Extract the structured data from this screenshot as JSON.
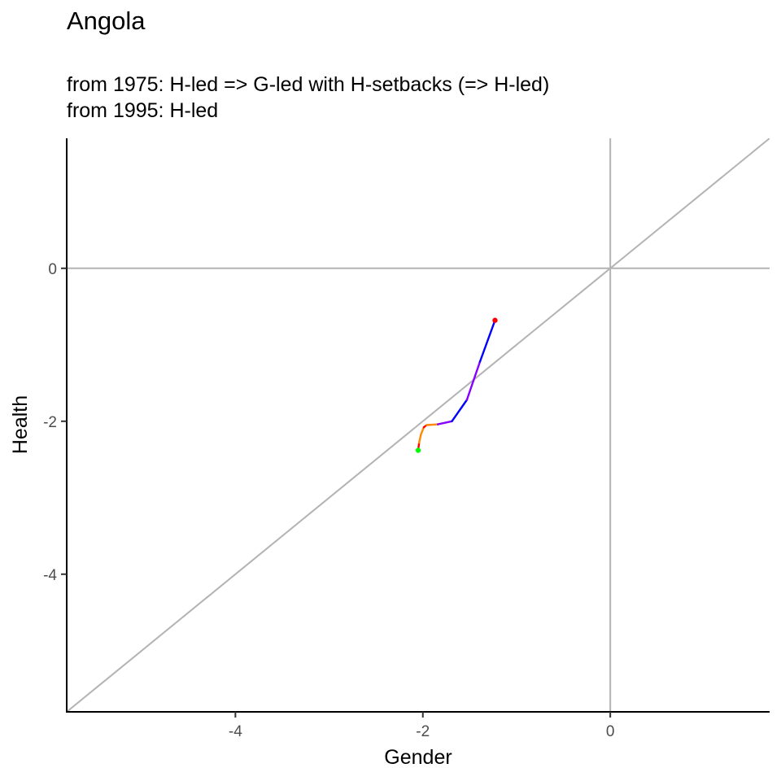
{
  "chart_data": {
    "type": "line",
    "title": "Angola",
    "subtitle_lines": [
      "from 1975:  H-led => G-led with H-setbacks (=> H-led)",
      "from 1995:  H-led"
    ],
    "xlabel": "Gender",
    "ylabel": "Health",
    "xlim": [
      -5.8,
      1.7
    ],
    "ylim": [
      -5.8,
      1.7
    ],
    "x_ticks": [
      -4,
      -2,
      0
    ],
    "y_ticks": [
      0,
      -2,
      -4
    ],
    "grid": false,
    "reference_lines": [
      "x = 0",
      "y = 0",
      "y = x"
    ],
    "reference_color": "#b3b3b3",
    "start_point": {
      "x": -2.05,
      "y": -2.38,
      "color": "#00ff00"
    },
    "end_point": {
      "x": -1.23,
      "y": -0.68,
      "color": "#ff0000"
    },
    "path_segments": [
      {
        "color": "#ff0000",
        "points": [
          [
            -2.05,
            -2.38
          ],
          [
            -2.04,
            -2.28
          ]
        ]
      },
      {
        "color": "#ff8800",
        "points": [
          [
            -2.04,
            -2.28
          ],
          [
            -2.02,
            -2.17
          ],
          [
            -1.99,
            -2.08
          ]
        ]
      },
      {
        "color": "#ff0000",
        "points": [
          [
            -1.99,
            -2.08
          ],
          [
            -1.96,
            -2.05
          ]
        ]
      },
      {
        "color": "#ff8800",
        "points": [
          [
            -1.96,
            -2.05
          ],
          [
            -1.84,
            -2.04
          ]
        ]
      },
      {
        "color": "#8800ff",
        "points": [
          [
            -1.84,
            -2.04
          ],
          [
            -1.69,
            -2.0
          ]
        ]
      },
      {
        "color": "#0000ff",
        "points": [
          [
            -1.69,
            -2.0
          ],
          [
            -1.53,
            -1.72
          ]
        ]
      },
      {
        "color": "#8800ff",
        "points": [
          [
            -1.53,
            -1.72
          ],
          [
            -1.39,
            -1.22
          ]
        ]
      },
      {
        "color": "#0000ff",
        "points": [
          [
            -1.39,
            -1.22
          ],
          [
            -1.23,
            -0.68
          ]
        ]
      }
    ]
  }
}
